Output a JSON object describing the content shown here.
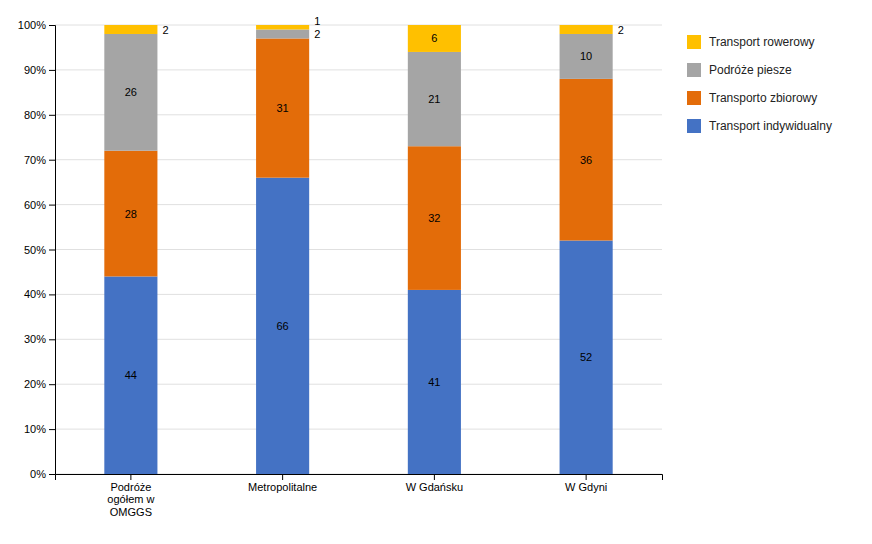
{
  "chart_data": {
    "type": "bar",
    "stacked": true,
    "categories": [
      "Podróże\nogółem w\nOMGGS",
      "Metropolitalne",
      "W Gdańsku",
      "W Gdyni"
    ],
    "series": [
      {
        "name": "Transport indywidualny",
        "color": "#4472C4",
        "values": [
          44,
          66,
          41,
          52
        ]
      },
      {
        "name": "Transporto zbiorowy",
        "color": "#E36C09",
        "values": [
          28,
          31,
          32,
          36
        ]
      },
      {
        "name": "Podróże piesze",
        "color": "#A5A5A5",
        "values": [
          26,
          2,
          21,
          10
        ]
      },
      {
        "name": "Transport rowerowy",
        "color": "#FFC000",
        "values": [
          2,
          1,
          6,
          2
        ]
      }
    ],
    "ylim": [
      0,
      100
    ],
    "yticks": [
      {
        "value": 0,
        "label": "0%"
      },
      {
        "value": 10,
        "label": "10%"
      },
      {
        "value": 20,
        "label": "20%"
      },
      {
        "value": 30,
        "label": "30%"
      },
      {
        "value": 40,
        "label": "40%"
      },
      {
        "value": 50,
        "label": "50%"
      },
      {
        "value": 60,
        "label": "60%"
      },
      {
        "value": 70,
        "label": "70%"
      },
      {
        "value": 80,
        "label": "80%"
      },
      {
        "value": 90,
        "label": "90%"
      },
      {
        "value": 100,
        "label": "100%"
      }
    ],
    "grid": true,
    "legend": "right",
    "data_labels": true
  }
}
